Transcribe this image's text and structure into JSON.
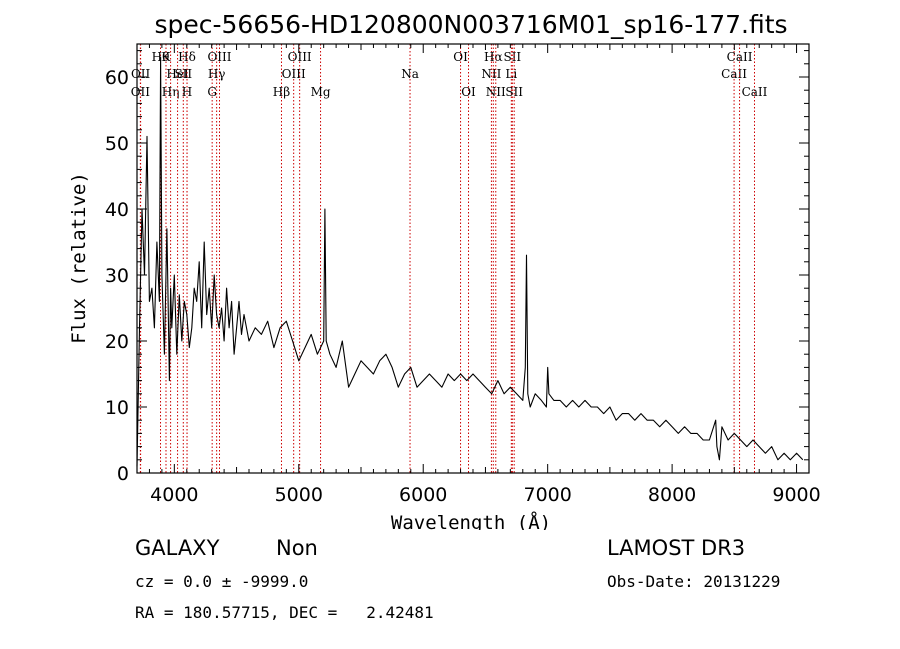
{
  "chart_data": {
    "type": "line",
    "title": "spec-56656-HD120800N003716M01_sp16-177.fits",
    "xlabel": "Wavelength (Å)",
    "ylabel": "Flux (relative)",
    "xlim": [
      3700,
      9100
    ],
    "ylim": [
      0,
      65
    ],
    "x_ticks": [
      4000,
      5000,
      6000,
      7000,
      8000,
      9000
    ],
    "y_ticks": [
      0,
      10,
      20,
      30,
      40,
      50,
      60
    ],
    "grid": false,
    "series": [
      {
        "x": [
          3700,
          3720,
          3740,
          3760,
          3780,
          3800,
          3820,
          3840,
          3860,
          3880,
          3890,
          3900,
          3920,
          3940,
          3960,
          3970,
          3980,
          4000,
          4020,
          4040,
          4060,
          4080,
          4100,
          4120,
          4140,
          4160,
          4180,
          4200,
          4220,
          4240,
          4260,
          4280,
          4300,
          4320,
          4340,
          4360,
          4380,
          4400,
          4420,
          4440,
          4460,
          4480,
          4500,
          4520,
          4540,
          4560,
          4580,
          4600,
          4650,
          4700,
          4750,
          4800,
          4850,
          4900,
          4950,
          5000,
          5050,
          5100,
          5150,
          5200,
          5210,
          5220,
          5250,
          5300,
          5350,
          5400,
          5450,
          5500,
          5550,
          5600,
          5650,
          5700,
          5750,
          5800,
          5850,
          5900,
          5950,
          6000,
          6050,
          6100,
          6150,
          6200,
          6250,
          6300,
          6350,
          6400,
          6450,
          6500,
          6550,
          6600,
          6650,
          6700,
          6750,
          6800,
          6820,
          6830,
          6840,
          6860,
          6900,
          6950,
          6990,
          7000,
          7010,
          7050,
          7100,
          7150,
          7200,
          7250,
          7300,
          7350,
          7400,
          7450,
          7500,
          7550,
          7600,
          7650,
          7700,
          7750,
          7800,
          7850,
          7900,
          7950,
          8000,
          8050,
          8100,
          8150,
          8200,
          8250,
          8300,
          8350,
          8360,
          8380,
          8400,
          8450,
          8500,
          8550,
          8600,
          8650,
          8700,
          8750,
          8800,
          8850,
          8900,
          8950,
          9000,
          9050
        ],
        "values": [
          1,
          22,
          40,
          30,
          51,
          26,
          28,
          22,
          35,
          26,
          63,
          30,
          18,
          37,
          14,
          28,
          22,
          30,
          18,
          27,
          20,
          26,
          24,
          19,
          22,
          28,
          26,
          32,
          22,
          35,
          24,
          28,
          22,
          30,
          24,
          22,
          25,
          20,
          28,
          22,
          26,
          18,
          22,
          26,
          21,
          24,
          22,
          20,
          22,
          21,
          23,
          19,
          22,
          23,
          20,
          17,
          19,
          21,
          18,
          20,
          40,
          20,
          18,
          16,
          20,
          13,
          15,
          17,
          16,
          15,
          17,
          18,
          16,
          13,
          15,
          16,
          13,
          14,
          15,
          14,
          13,
          15,
          14,
          15,
          14,
          15,
          14,
          13,
          12,
          14,
          12,
          13,
          12,
          11,
          16,
          33,
          12,
          10,
          12,
          11,
          10,
          16,
          12,
          11,
          11,
          10,
          11,
          10,
          11,
          10,
          10,
          9,
          10,
          8,
          9,
          9,
          8,
          9,
          8,
          8,
          7,
          8,
          7,
          6,
          7,
          6,
          6,
          5,
          5,
          8,
          4,
          2,
          7,
          5,
          6,
          5,
          4,
          5,
          4,
          3,
          4,
          2,
          3,
          2,
          3,
          2
        ]
      }
    ],
    "line_markers": [
      {
        "w": 3727,
        "label": "OII",
        "row": 1
      },
      {
        "w": 3729,
        "label": "OII",
        "row": 0
      },
      {
        "w": 3889,
        "label": "Hθ",
        "row": -1
      },
      {
        "w": 3933,
        "label": "K",
        "row": -1
      },
      {
        "w": 3970,
        "label": "Hη",
        "row": 1
      },
      {
        "w": 4026,
        "label": "HeI",
        "row": 0
      },
      {
        "w": 4072,
        "label": "SII",
        "row": 0
      },
      {
        "w": 4102,
        "label": "Hδ",
        "row": -1
      },
      {
        "w": 4102,
        "label": "H",
        "row": 1
      },
      {
        "w": 4304,
        "label": "G",
        "row": 1
      },
      {
        "w": 4340,
        "label": "Hγ",
        "row": 0
      },
      {
        "w": 4363,
        "label": "OIII",
        "row": -1
      },
      {
        "w": 4861,
        "label": "Hβ",
        "row": 1
      },
      {
        "w": 4959,
        "label": "OIII",
        "row": 0
      },
      {
        "w": 5007,
        "label": "OIII",
        "row": -1
      },
      {
        "w": 5175,
        "label": "Mg",
        "row": 1
      },
      {
        "w": 5894,
        "label": "Na",
        "row": 0
      },
      {
        "w": 6300,
        "label": "OI",
        "row": -1
      },
      {
        "w": 6364,
        "label": "OI",
        "row": 1
      },
      {
        "w": 6548,
        "label": "NII",
        "row": 0
      },
      {
        "w": 6563,
        "label": "Hα",
        "row": -1
      },
      {
        "w": 6583,
        "label": "NII",
        "row": 1
      },
      {
        "w": 6708,
        "label": "Li",
        "row": 0
      },
      {
        "w": 6716,
        "label": "SII",
        "row": -1
      },
      {
        "w": 6731,
        "label": "SII",
        "row": 1
      },
      {
        "w": 8498,
        "label": "CaII",
        "row": 0
      },
      {
        "w": 8542,
        "label": "CaII",
        "row": -1
      },
      {
        "w": 8662,
        "label": "CaII",
        "row": 1
      }
    ]
  },
  "footer": {
    "class_label": "GALAXY",
    "subclass_label": "Non",
    "survey": "LAMOST DR3",
    "cz_line": "cz = 0.0 ± -9999.0",
    "obs_date": "Obs-Date: 20131229",
    "radec_line": "RA = 180.57715, DEC =   2.42481"
  }
}
